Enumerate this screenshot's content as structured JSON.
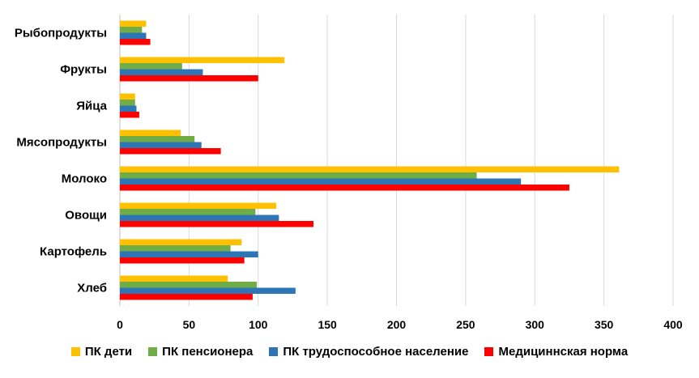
{
  "chart_data": {
    "type": "bar",
    "orientation": "horizontal",
    "categories": [
      "Рыбопродукты",
      "Фрукты",
      "Яйца",
      "Мясопродукты",
      "Молоко",
      "Овощи",
      "Картофель",
      "Хлеб"
    ],
    "series": [
      {
        "name": "ПК дети",
        "color": "#FFC000",
        "values": [
          19,
          119,
          11,
          44,
          361,
          113,
          88,
          78
        ]
      },
      {
        "name": "ПК пенсионера",
        "color": "#70AD47",
        "values": [
          16,
          45,
          11,
          54,
          258,
          98,
          80,
          99
        ]
      },
      {
        "name": "ПК трудоспособное население",
        "color": "#2E75B6",
        "values": [
          19,
          60,
          12,
          59,
          290,
          115,
          100,
          127
        ]
      },
      {
        "name": "Медицинnская норма",
        "color": "#FF0000",
        "values": [
          22,
          100,
          14,
          73,
          325,
          140,
          90,
          96
        ]
      }
    ],
    "xlim": [
      0,
      400
    ],
    "xticks": [
      "0",
      "50",
      "100",
      "150",
      "200",
      "250",
      "300",
      "350",
      "400"
    ],
    "grid": "vertical",
    "legend_position": "bottom"
  }
}
